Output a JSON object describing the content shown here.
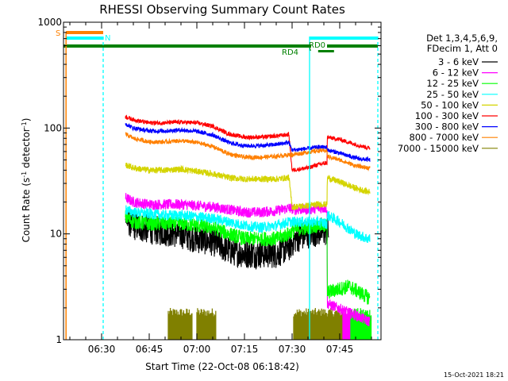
{
  "chart_data": {
    "type": "line",
    "title": "RHESSI Observing Summary Count Rates",
    "xlabel": "Start Time (22-Oct-08 06:18:42)",
    "ylabel_main": "Count Rate (s",
    "ylabel_sup1": "-1",
    "ylabel_mid": " detector",
    "ylabel_sup2": "-1",
    "ylabel_end": ")",
    "yscale": "log",
    "ylim": [
      1,
      1000
    ],
    "xlim_min": [
      378,
      478
    ],
    "x_ticks": [
      {
        "min": 390,
        "label": "06:30"
      },
      {
        "min": 405,
        "label": "06:45"
      },
      {
        "min": 420,
        "label": "07:00"
      },
      {
        "min": 435,
        "label": "07:15"
      },
      {
        "min": 450,
        "label": "07:30"
      },
      {
        "min": 465,
        "label": "07:45"
      }
    ],
    "y_ticks": [
      {
        "value": 1,
        "label": "1"
      },
      {
        "value": 10,
        "label": "10"
      },
      {
        "value": 100,
        "label": "100"
      },
      {
        "value": 1000,
        "label": "1000"
      }
    ],
    "legend_header": [
      "Det 1,3,4,5,6,9,",
      "FDecim 1, Att 0"
    ],
    "legend_position": "right",
    "series": [
      {
        "name": "3 - 6 keV",
        "color": "#000000",
        "start": 397.5,
        "end": 461.5,
        "keys": [
          [
            397.5,
            14
          ],
          [
            400,
            12
          ],
          [
            405,
            11
          ],
          [
            410,
            10.5
          ],
          [
            415,
            10
          ],
          [
            420,
            9
          ],
          [
            425,
            8.5
          ],
          [
            430,
            7
          ],
          [
            435,
            6.5
          ],
          [
            440,
            6.5
          ],
          [
            445,
            6.5
          ],
          [
            449,
            7.5
          ],
          [
            451,
            9
          ],
          [
            455,
            10
          ],
          [
            458,
            10.5
          ],
          [
            461,
            10.5
          ]
        ],
        "noise": 0.14
      },
      {
        "name": "6 - 12 keV",
        "color": "#ff00ff",
        "start": 397.5,
        "end": 474.5,
        "keys": [
          [
            397.5,
            22
          ],
          [
            400,
            20
          ],
          [
            405,
            19
          ],
          [
            410,
            19
          ],
          [
            415,
            19
          ],
          [
            420,
            18.5
          ],
          [
            425,
            18
          ],
          [
            430,
            17
          ],
          [
            435,
            16
          ],
          [
            440,
            16
          ],
          [
            445,
            16.5
          ],
          [
            449,
            17.5
          ],
          [
            451,
            17
          ],
          [
            455,
            17
          ],
          [
            458,
            17.5
          ],
          [
            461,
            17.5
          ],
          [
            461.1,
            2.2
          ],
          [
            468,
            1.8
          ],
          [
            474,
            1.5
          ]
        ],
        "noise": 0.05
      },
      {
        "name": "12 - 25 keV",
        "color": "#00ff00",
        "start": 397.5,
        "end": 474.5,
        "keys": [
          [
            397.5,
            14.5
          ],
          [
            400,
            13
          ],
          [
            405,
            12.5
          ],
          [
            410,
            12.5
          ],
          [
            415,
            12.5
          ],
          [
            420,
            12
          ],
          [
            425,
            11.5
          ],
          [
            430,
            10
          ],
          [
            435,
            9
          ],
          [
            440,
            9
          ],
          [
            445,
            9
          ],
          [
            449,
            10
          ],
          [
            451,
            11
          ],
          [
            455,
            11.5
          ],
          [
            458,
            12
          ],
          [
            461,
            12
          ],
          [
            461.1,
            2.8
          ],
          [
            468,
            3.2
          ],
          [
            474,
            2.5
          ]
        ],
        "noise": 0.07
      },
      {
        "name": "25 - 50 keV",
        "color": "#00ffff",
        "start": 397.5,
        "end": 474.5,
        "keys": [
          [
            397.5,
            17
          ],
          [
            400,
            16
          ],
          [
            405,
            15.5
          ],
          [
            410,
            15
          ],
          [
            415,
            15
          ],
          [
            420,
            14.5
          ],
          [
            425,
            14
          ],
          [
            430,
            13
          ],
          [
            435,
            12
          ],
          [
            440,
            11.5
          ],
          [
            445,
            12
          ],
          [
            449,
            13
          ],
          [
            451,
            13
          ],
          [
            455,
            13
          ],
          [
            458,
            13
          ],
          [
            461,
            12.5
          ],
          [
            461.1,
            15
          ],
          [
            465,
            13
          ],
          [
            470,
            10
          ],
          [
            474,
            9
          ]
        ],
        "noise": 0.05
      },
      {
        "name": "50 - 100 keV",
        "color": "#d4d400",
        "start": 397.5,
        "end": 474.5,
        "keys": [
          [
            397.5,
            45
          ],
          [
            400,
            42
          ],
          [
            405,
            40
          ],
          [
            410,
            40
          ],
          [
            415,
            41
          ],
          [
            420,
            39
          ],
          [
            425,
            37
          ],
          [
            430,
            34
          ],
          [
            435,
            33
          ],
          [
            440,
            33
          ],
          [
            445,
            33
          ],
          [
            449,
            34
          ],
          [
            450,
            18
          ],
          [
            455,
            18.5
          ],
          [
            458,
            19
          ],
          [
            461,
            19
          ],
          [
            461.1,
            34
          ],
          [
            465,
            31
          ],
          [
            470,
            27
          ],
          [
            474,
            25
          ]
        ],
        "noise": 0.03
      },
      {
        "name": "100 - 300 keV",
        "color": "#ff0000",
        "start": 397.5,
        "end": 474.5,
        "keys": [
          [
            397.5,
            128
          ],
          [
            400,
            120
          ],
          [
            405,
            112
          ],
          [
            410,
            112
          ],
          [
            415,
            114
          ],
          [
            420,
            112
          ],
          [
            425,
            104
          ],
          [
            430,
            88
          ],
          [
            435,
            82
          ],
          [
            440,
            82
          ],
          [
            445,
            84
          ],
          [
            449,
            87
          ],
          [
            450,
            40
          ],
          [
            455,
            42
          ],
          [
            458,
            45
          ],
          [
            461,
            47
          ],
          [
            461.1,
            82
          ],
          [
            465,
            78
          ],
          [
            470,
            70
          ],
          [
            474,
            65
          ]
        ],
        "noise": 0.02
      },
      {
        "name": "300 - 800 keV",
        "color": "#0000ff",
        "start": 397.5,
        "end": 474.5,
        "keys": [
          [
            397.5,
            110
          ],
          [
            400,
            100
          ],
          [
            405,
            94
          ],
          [
            410,
            94
          ],
          [
            415,
            96
          ],
          [
            420,
            93
          ],
          [
            425,
            86
          ],
          [
            430,
            73
          ],
          [
            435,
            68
          ],
          [
            440,
            68
          ],
          [
            445,
            70
          ],
          [
            449,
            73
          ],
          [
            450,
            62
          ],
          [
            455,
            64
          ],
          [
            458,
            66
          ],
          [
            461,
            66
          ],
          [
            461.1,
            62
          ],
          [
            465,
            58
          ],
          [
            470,
            52
          ],
          [
            474,
            50
          ]
        ],
        "noise": 0.02
      },
      {
        "name": "800 - 7000 keV",
        "color": "#ff8000",
        "start": 397.5,
        "end": 474.5,
        "keys": [
          [
            397.5,
            88
          ],
          [
            400,
            80
          ],
          [
            405,
            74
          ],
          [
            410,
            74
          ],
          [
            415,
            76
          ],
          [
            420,
            73
          ],
          [
            425,
            67
          ],
          [
            430,
            57
          ],
          [
            435,
            53
          ],
          [
            440,
            53
          ],
          [
            445,
            54
          ],
          [
            449,
            56
          ],
          [
            450,
            56
          ],
          [
            455,
            59
          ],
          [
            458,
            61
          ],
          [
            461,
            61
          ],
          [
            461.1,
            54
          ],
          [
            465,
            50
          ],
          [
            470,
            44
          ],
          [
            474,
            42
          ]
        ],
        "noise": 0.02
      },
      {
        "name": "7000 - 15000 keV",
        "color": "#808000",
        "start": 378,
        "end": 378,
        "keys": [
          [
            378,
            1
          ]
        ],
        "noise": 0
      }
    ],
    "annotations": [
      {
        "label": "S",
        "color": "#ff8000"
      },
      {
        "label": "N",
        "color": "#00ffff"
      },
      {
        "label": "RD0",
        "color": "#008000"
      },
      {
        "label": "RD4",
        "color": "#008000"
      }
    ],
    "flags": {
      "saa": [
        [
          378.8,
          390.5
        ]
      ],
      "night": [
        [
          378.8,
          390.5
        ],
        [
          455.5,
          477
        ]
      ],
      "decim": [
        [
          378,
          456
        ],
        [
          461,
          477
        ]
      ],
      "rd0_min": 455.3,
      "rd4": [
        458.2,
        463.2
      ],
      "saa_edges": [
        378.8,
        390.5
      ],
      "night_lines": [
        390.5,
        455.5,
        477
      ]
    },
    "bursts": [
      {
        "color": "#808000",
        "ranges": [
          [
            411,
            418.5
          ],
          [
            420,
            426
          ],
          [
            450.5,
            460
          ],
          [
            459.5,
            466
          ]
        ]
      },
      {
        "color": "#ff00ff",
        "ranges": [
          [
            466,
            472
          ]
        ]
      },
      {
        "color": "#00ff00",
        "ranges": [
          [
            468.5,
            475
          ]
        ]
      }
    ]
  },
  "footer": {
    "date": "15-Oct-2021 18:21"
  }
}
